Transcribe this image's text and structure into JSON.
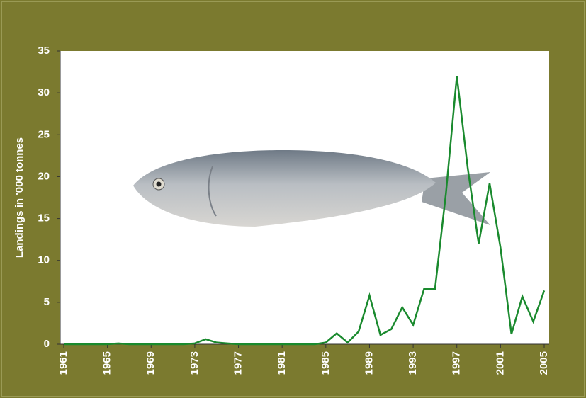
{
  "chart_data": {
    "type": "line",
    "y_label": "Landings in '000 tonnes",
    "x": [
      1961,
      1962,
      1963,
      1964,
      1965,
      1966,
      1967,
      1968,
      1969,
      1970,
      1971,
      1972,
      1973,
      1974,
      1975,
      1976,
      1977,
      1978,
      1979,
      1980,
      1981,
      1982,
      1983,
      1984,
      1985,
      1986,
      1987,
      1988,
      1989,
      1990,
      1991,
      1992,
      1993,
      1994,
      1995,
      1996,
      1997,
      1998,
      1999,
      2000,
      2001,
      2002,
      2003,
      2004,
      2005
    ],
    "values": [
      0,
      0,
      0,
      0,
      0,
      0.1,
      0,
      0,
      0,
      0,
      0,
      0,
      0.1,
      0.6,
      0.2,
      0.1,
      0,
      0,
      0,
      0,
      0,
      0,
      0,
      0,
      0.2,
      1.3,
      0.2,
      1.5,
      5.8,
      1.1,
      1.8,
      4.4,
      2.3,
      6.6,
      6.6,
      18,
      32,
      21,
      12,
      19.2,
      11.5,
      1.2,
      5.7,
      2.7,
      6.4
    ],
    "color": "#1a8a2e",
    "xlim": [
      1961,
      2005
    ],
    "xticks": [
      1961,
      1965,
      1969,
      1973,
      1977,
      1981,
      1985,
      1989,
      1993,
      1997,
      2001,
      2005
    ],
    "ylim": [
      0,
      35
    ],
    "yticks": [
      0,
      5,
      10,
      15,
      20,
      25,
      30,
      35
    ]
  }
}
